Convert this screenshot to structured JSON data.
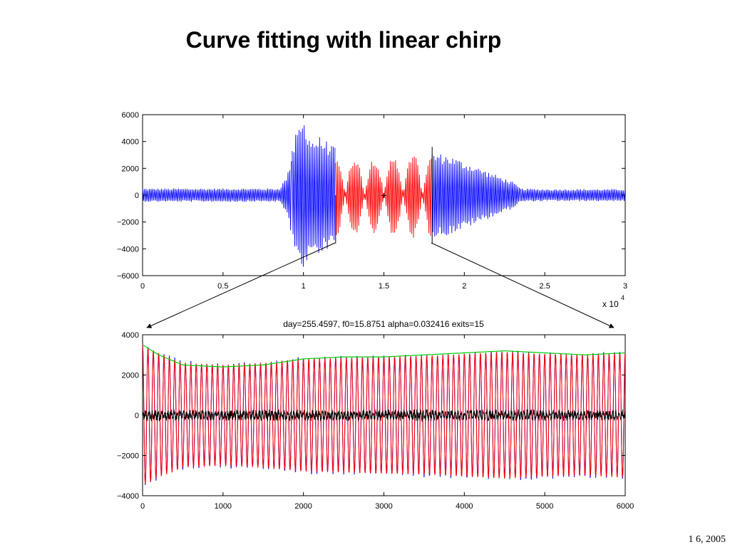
{
  "slide": {
    "title": "Curve fitting with linear chirp",
    "footer": "1 6, 2005"
  },
  "colors": {
    "blue": "#0000ff",
    "red": "#ff0000",
    "green": "#00cc00",
    "black": "#000000",
    "dark_blue": "#000080"
  },
  "chart_data": [
    {
      "type": "line",
      "title": "",
      "xlabel": "",
      "ylabel": "",
      "x_multiplier_label": "x 10",
      "x_multiplier_exponent": "4",
      "xlim": [
        0,
        3
      ],
      "ylim": [
        -6000,
        6000
      ],
      "x_ticks": [
        0,
        0.5,
        1,
        1.5,
        2,
        2.5,
        3
      ],
      "x_tick_labels": [
        "0",
        "0.5",
        "1",
        "1.5",
        "2",
        "2.5",
        "3"
      ],
      "y_ticks": [
        6000,
        4000,
        2000,
        0,
        -2000,
        -4000,
        -6000
      ],
      "y_tick_labels": [
        "6000",
        "4000",
        "2000",
        "0",
        "−2000",
        "−4000",
        "−6000"
      ],
      "series": [
        {
          "color": "#0000ff",
          "segments": [
            [
              0,
              0.93
            ],
            [
              0.93,
              1.2
            ],
            [
              1.8,
              2.35
            ],
            [
              2.35,
              3
            ]
          ],
          "envelope": {
            "x": [
              0,
              0.3,
              0.6,
              0.85,
              0.9,
              0.95,
              1.0,
              1.05,
              1.1,
              1.15,
              1.2,
              1.8,
              1.9,
              2.0,
              2.1,
              2.2,
              2.3,
              2.35,
              2.5,
              3.0
            ],
            "amp": [
              500,
              500,
              500,
              500,
              1500,
              4500,
              5800,
              4200,
              4400,
              4000,
              3500,
              3200,
              3000,
              2500,
              2000,
              1500,
              1000,
              500,
              450,
              450
            ]
          }
        },
        {
          "color": "#ff0000",
          "segments": [
            [
              1.2,
              1.8
            ]
          ],
          "envelope": {
            "x": [
              1.2,
              1.3,
              1.4,
              1.5,
              1.6,
              1.7,
              1.8
            ],
            "amp": [
              3200,
              3000,
              2900,
              3000,
              3200,
              3300,
              3400
            ]
          }
        }
      ],
      "marker": {
        "x": 1.5,
        "y": 0,
        "symbol": "+",
        "color": "#00cc00"
      },
      "zoom_window": [
        1.2,
        1.8
      ]
    },
    {
      "type": "line",
      "title": "day=255.4597, f0=15.8751 alpha=0.032416 exits=15",
      "xlabel": "",
      "ylabel": "",
      "xlim": [
        0,
        6000
      ],
      "ylim": [
        -4000,
        4000
      ],
      "x_ticks": [
        0,
        1000,
        2000,
        3000,
        4000,
        5000,
        6000
      ],
      "x_tick_labels": [
        "0",
        "1000",
        "2000",
        "3000",
        "4000",
        "5000",
        "6000"
      ],
      "y_ticks": [
        4000,
        2000,
        0,
        -2000,
        -4000
      ],
      "y_tick_labels": [
        "4000",
        "2000",
        "0",
        "−2000",
        "−4000"
      ],
      "series": [
        {
          "role": "signal",
          "color": "#0000ff"
        },
        {
          "role": "fit",
          "color": "#ff0000"
        },
        {
          "role": "residual",
          "color": "#000000"
        }
      ],
      "upper_envelope": {
        "color": "#00cc00",
        "x": [
          0,
          200,
          500,
          1000,
          1500,
          2000,
          2500,
          3000,
          3500,
          4000,
          4500,
          5000,
          5500,
          6000
        ],
        "y": [
          3500,
          3000,
          2500,
          2400,
          2500,
          2800,
          2900,
          2900,
          3000,
          3100,
          3200,
          3100,
          3000,
          3100
        ]
      },
      "lower_envelope": {
        "x": [
          0,
          500,
          1000,
          1500,
          2000,
          2500,
          3000,
          3500,
          4000,
          4500,
          5000,
          5500,
          6000
        ],
        "y": [
          -3500,
          -2700,
          -2600,
          -2700,
          -2800,
          -2800,
          -2900,
          -2900,
          -3000,
          -3100,
          -3000,
          -3000,
          -3100
        ]
      },
      "cycles": 90
    }
  ]
}
